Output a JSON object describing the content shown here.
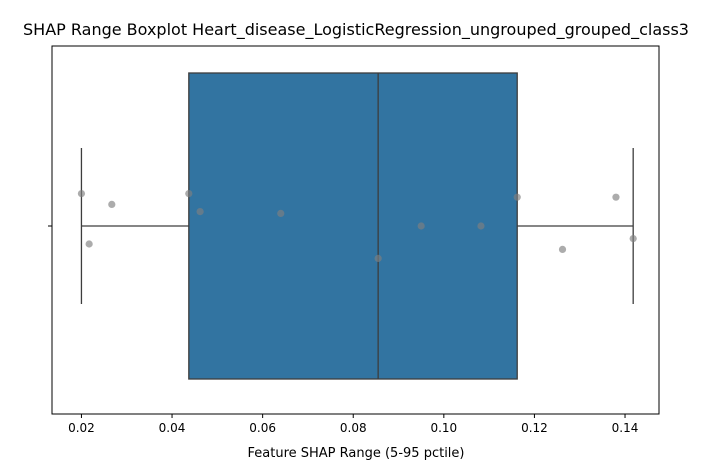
{
  "chart_data": {
    "type": "box",
    "title": "SHAP Range Boxplot Heart_disease_LogisticRegression_ungrouped_grouped_class3",
    "xlabel": "Feature SHAP Range (5-95 pctile)",
    "ylabel": "",
    "orientation": "horizontal",
    "xlim": [
      0.0135,
      0.1475
    ],
    "xticks": [
      0.02,
      0.04,
      0.06,
      0.08,
      0.1,
      0.12,
      0.14
    ],
    "xtick_labels": [
      "0.02",
      "0.04",
      "0.06",
      "0.08",
      "0.10",
      "0.12",
      "0.14"
    ],
    "box": {
      "whisker_low": 0.02,
      "q1": 0.0437,
      "median": 0.0855,
      "q3": 0.1162,
      "whisker_high": 0.1418
    },
    "points": [
      {
        "x": 0.02,
        "jitter": 0.18
      },
      {
        "x": 0.0267,
        "jitter": 0.12
      },
      {
        "x": 0.0217,
        "jitter": -0.1
      },
      {
        "x": 0.0437,
        "jitter": 0.18
      },
      {
        "x": 0.0462,
        "jitter": 0.08
      },
      {
        "x": 0.064,
        "jitter": 0.07
      },
      {
        "x": 0.0855,
        "jitter": -0.18
      },
      {
        "x": 0.095,
        "jitter": 0.0
      },
      {
        "x": 0.1082,
        "jitter": 0.0
      },
      {
        "x": 0.1162,
        "jitter": 0.16
      },
      {
        "x": 0.1262,
        "jitter": -0.13
      },
      {
        "x": 0.138,
        "jitter": 0.16
      },
      {
        "x": 0.1418,
        "jitter": -0.07
      }
    ],
    "box_color": "#3274a1",
    "line_color": "#3d3d3d",
    "point_color": "#808080"
  }
}
